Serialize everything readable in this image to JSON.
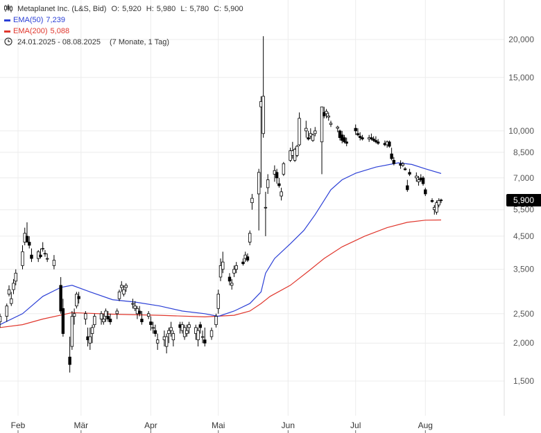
{
  "header": {
    "title": "Metaplanet Inc. (L&S, Bid)",
    "open_label": "O:",
    "open": "5,920",
    "high_label": "H:",
    "high": "5,980",
    "low_label": "L:",
    "low": "5,780",
    "close_label": "C:",
    "close": "5,900",
    "ema50_label": "EMA(50)",
    "ema50_value": "7,239",
    "ema200_label": "EMA(200)",
    "ema200_value": "5,088",
    "period": "24.01.2025 - 08.08.2025",
    "period_detail": "(7 Monate, 1 Tag)"
  },
  "price_tag": "5,900",
  "colors": {
    "ema50": "#2b3fd6",
    "ema200": "#e0362c",
    "candle": "#000000",
    "grid": "#ececec"
  },
  "icons": {
    "chart_type": "candles-icon",
    "period": "clock-icon"
  },
  "chart_data": {
    "type": "candlestick",
    "y_scale": "log",
    "ylim": [
      1200,
      23000
    ],
    "grid": true,
    "y_ticks": [
      1500,
      2000,
      2500,
      3500,
      4500,
      5500,
      7000,
      8500,
      10000,
      15000,
      20000
    ],
    "y_tick_labels": [
      "1,500",
      "2,000",
      "2,500",
      "3,500",
      "4,500",
      "5,500",
      "7,000",
      "8,500",
      "10,000",
      "15,000",
      "20,000"
    ],
    "x_range": [
      "2025-01-24",
      "2025-08-08"
    ],
    "x_ticks": [
      "2025-02-01",
      "2025-03-01",
      "2025-04-01",
      "2025-05-01",
      "2025-06-01",
      "2025-07-01",
      "2025-08-01"
    ],
    "x_tick_labels": [
      "Feb",
      "Mär",
      "Apr",
      "Mai",
      "Jun",
      "Jul",
      "Aug"
    ],
    "series": [
      {
        "name": "EMA(50)",
        "color": "#2b3fd6",
        "points": [
          [
            "2025-01-24",
            2300
          ],
          [
            "2025-02-03",
            2500
          ],
          [
            "2025-02-12",
            2850
          ],
          [
            "2025-02-20",
            3050
          ],
          [
            "2025-02-25",
            3100
          ],
          [
            "2025-03-05",
            2950
          ],
          [
            "2025-03-15",
            2780
          ],
          [
            "2025-03-25",
            2730
          ],
          [
            "2025-04-05",
            2650
          ],
          [
            "2025-04-15",
            2550
          ],
          [
            "2025-04-25",
            2500
          ],
          [
            "2025-05-01",
            2450
          ],
          [
            "2025-05-08",
            2550
          ],
          [
            "2025-05-15",
            2700
          ],
          [
            "2025-05-20",
            2950
          ],
          [
            "2025-05-22",
            3400
          ],
          [
            "2025-05-26",
            3800
          ],
          [
            "2025-06-02",
            4250
          ],
          [
            "2025-06-08",
            4700
          ],
          [
            "2025-06-13",
            5300
          ],
          [
            "2025-06-17",
            5900
          ],
          [
            "2025-06-20",
            6400
          ],
          [
            "2025-06-25",
            6900
          ],
          [
            "2025-07-01",
            7250
          ],
          [
            "2025-07-10",
            7600
          ],
          [
            "2025-07-20",
            7850
          ],
          [
            "2025-07-26",
            7750
          ],
          [
            "2025-08-01",
            7500
          ],
          [
            "2025-08-08",
            7239
          ]
        ]
      },
      {
        "name": "EMA(200)",
        "color": "#e0362c",
        "points": [
          [
            "2025-01-24",
            2250
          ],
          [
            "2025-02-03",
            2300
          ],
          [
            "2025-02-12",
            2400
          ],
          [
            "2025-02-25",
            2520
          ],
          [
            "2025-03-15",
            2490
          ],
          [
            "2025-04-05",
            2470
          ],
          [
            "2025-04-25",
            2440
          ],
          [
            "2025-05-08",
            2470
          ],
          [
            "2025-05-15",
            2550
          ],
          [
            "2025-05-20",
            2700
          ],
          [
            "2025-05-24",
            2850
          ],
          [
            "2025-06-02",
            3100
          ],
          [
            "2025-06-10",
            3450
          ],
          [
            "2025-06-17",
            3800
          ],
          [
            "2025-06-25",
            4150
          ],
          [
            "2025-07-05",
            4500
          ],
          [
            "2025-07-15",
            4800
          ],
          [
            "2025-07-24",
            5000
          ],
          [
            "2025-08-01",
            5080
          ],
          [
            "2025-08-08",
            5088
          ]
        ]
      }
    ],
    "candles": [
      [
        "2025-01-24",
        2350,
        2500,
        2250,
        2450
      ],
      [
        "2025-01-27",
        2450,
        2700,
        2350,
        2650
      ],
      [
        "2025-01-28",
        2900,
        3100,
        2850,
        3000
      ],
      [
        "2025-01-29",
        2700,
        2950,
        2650,
        2800
      ],
      [
        "2025-01-30",
        3000,
        3250,
        2900,
        3150
      ],
      [
        "2025-01-31",
        3200,
        3500,
        3100,
        3400
      ],
      [
        "2025-02-03",
        3600,
        4200,
        3500,
        4000
      ],
      [
        "2025-02-04",
        4300,
        4800,
        4200,
        4600
      ],
      [
        "2025-02-05",
        4500,
        5000,
        4300,
        4300
      ],
      [
        "2025-02-06",
        4300,
        4500,
        4100,
        4200
      ],
      [
        "2025-02-07",
        3900,
        4100,
        3700,
        3800
      ],
      [
        "2025-02-10",
        3800,
        4050,
        3700,
        4000
      ],
      [
        "2025-02-11",
        3900,
        4100,
        3800,
        3850
      ],
      [
        "2025-02-12",
        4100,
        4300,
        4000,
        4100
      ],
      [
        "2025-02-13",
        3950,
        4050,
        3850,
        3950
      ],
      [
        "2025-02-14",
        3800,
        3950,
        3700,
        3800
      ],
      [
        "2025-02-17",
        3600,
        3900,
        3500,
        3750
      ],
      [
        "2025-02-20",
        3100,
        3300,
        2500,
        2550
      ],
      [
        "2025-02-21",
        2600,
        2800,
        2100,
        2150
      ],
      [
        "2025-02-24",
        1800,
        2100,
        1600,
        1700
      ],
      [
        "2025-02-25",
        1950,
        2550,
        1900,
        2450
      ],
      [
        "2025-02-26",
        2450,
        2600,
        2300,
        2500
      ],
      [
        "2025-02-27",
        2650,
        2950,
        2600,
        2900
      ],
      [
        "2025-02-28",
        2850,
        2950,
        2700,
        2800
      ],
      [
        "2025-03-03",
        2400,
        2550,
        2300,
        2500
      ],
      [
        "2025-03-04",
        2100,
        2250,
        1950,
        2050
      ],
      [
        "2025-03-05",
        2000,
        2250,
        1900,
        2100
      ],
      [
        "2025-03-06",
        2150,
        2300,
        2000,
        2250
      ],
      [
        "2025-03-07",
        2300,
        2500,
        2250,
        2450
      ],
      [
        "2025-03-10",
        2400,
        2550,
        2300,
        2500
      ],
      [
        "2025-03-11",
        2350,
        2500,
        2300,
        2400
      ],
      [
        "2025-03-12",
        2450,
        2600,
        2350,
        2550
      ],
      [
        "2025-03-13",
        2450,
        2550,
        2350,
        2400
      ],
      [
        "2025-03-14",
        2400,
        2500,
        2300,
        2350
      ],
      [
        "2025-03-17",
        2500,
        2600,
        2400,
        2550
      ],
      [
        "2025-03-18",
        2800,
        3000,
        2750,
        2950
      ],
      [
        "2025-03-19",
        3050,
        3200,
        2950,
        3100
      ],
      [
        "2025-03-20",
        2900,
        3100,
        2850,
        3000
      ],
      [
        "2025-03-21",
        3050,
        3150,
        2950,
        3100
      ],
      [
        "2025-03-24",
        2700,
        2800,
        2600,
        2700
      ],
      [
        "2025-03-25",
        2600,
        2750,
        2550,
        2650
      ],
      [
        "2025-03-26",
        2500,
        2650,
        2400,
        2600
      ],
      [
        "2025-03-27",
        2550,
        2650,
        2450,
        2500
      ],
      [
        "2025-03-28",
        2400,
        2550,
        2300,
        2350
      ],
      [
        "2025-03-31",
        2450,
        2550,
        2400,
        2500
      ],
      [
        "2025-04-01",
        2350,
        2450,
        2200,
        2300
      ],
      [
        "2025-04-02",
        2250,
        2350,
        2150,
        2250
      ],
      [
        "2025-04-03",
        2200,
        2300,
        2100,
        2150
      ],
      [
        "2025-04-04",
        2000,
        2150,
        1900,
        2050
      ],
      [
        "2025-04-07",
        2050,
        2200,
        1950,
        2100
      ],
      [
        "2025-04-08",
        1950,
        2150,
        1850,
        2100
      ],
      [
        "2025-04-09",
        2150,
        2250,
        2000,
        2200
      ],
      [
        "2025-04-10",
        2200,
        2350,
        2100,
        2250
      ],
      [
        "2025-04-11",
        2050,
        2200,
        1950,
        2150
      ],
      [
        "2025-04-14",
        2300,
        2350,
        2150,
        2250
      ],
      [
        "2025-04-15",
        2200,
        2350,
        2150,
        2300
      ],
      [
        "2025-04-16",
        2100,
        2300,
        2050,
        2250
      ],
      [
        "2025-04-17",
        2150,
        2300,
        2100,
        2200
      ],
      [
        "2025-04-18",
        2250,
        2350,
        2150,
        2300
      ],
      [
        "2025-04-21",
        2150,
        2300,
        2050,
        2250
      ],
      [
        "2025-04-22",
        2050,
        2250,
        1950,
        2200
      ],
      [
        "2025-04-23",
        2300,
        2350,
        2150,
        2250
      ],
      [
        "2025-04-24",
        2100,
        2200,
        2000,
        2100
      ],
      [
        "2025-04-25",
        2050,
        2250,
        1950,
        2000
      ],
      [
        "2025-04-28",
        2100,
        2250,
        2050,
        2200
      ],
      [
        "2025-04-30",
        2300,
        2500,
        2250,
        2450
      ],
      [
        "2025-05-01",
        2600,
        3000,
        2500,
        2900
      ],
      [
        "2025-05-02",
        3300,
        3800,
        3200,
        3600
      ],
      [
        "2025-05-03",
        3500,
        4000,
        3400,
        3700
      ],
      [
        "2025-05-06",
        3300,
        3400,
        3100,
        3200
      ],
      [
        "2025-05-07",
        3100,
        3250,
        3000,
        3150
      ],
      [
        "2025-05-08",
        3400,
        3600,
        3300,
        3500
      ],
      [
        "2025-05-09",
        3500,
        3700,
        3400,
        3600
      ],
      [
        "2025-05-12",
        3700,
        3800,
        3600,
        3650
      ],
      [
        "2025-05-13",
        3800,
        4000,
        3700,
        3900
      ],
      [
        "2025-05-14",
        3850,
        3950,
        3700,
        3750
      ],
      [
        "2025-05-15",
        4300,
        4700,
        4200,
        4600
      ],
      [
        "2025-05-16",
        5800,
        6200,
        5500,
        6000
      ],
      [
        "2025-05-19",
        6200,
        7500,
        4700,
        7300
      ],
      [
        "2025-05-20",
        12000,
        13000,
        6500,
        12500
      ],
      [
        "2025-05-21",
        9800,
        20500,
        9500,
        13000
      ],
      [
        "2025-05-22",
        5600,
        6300,
        4500,
        5600
      ],
      [
        "2025-05-23",
        6500,
        7200,
        6200,
        6900
      ],
      [
        "2025-05-26",
        7200,
        7700,
        6800,
        7400
      ],
      [
        "2025-05-27",
        7300,
        7500,
        6700,
        7000
      ],
      [
        "2025-05-28",
        6700,
        7000,
        6500,
        6600
      ],
      [
        "2025-05-29",
        6100,
        6500,
        5900,
        6300
      ],
      [
        "2025-05-30",
        7200,
        7900,
        7100,
        7800
      ],
      [
        "2025-06-02",
        8000,
        8800,
        7900,
        8600
      ],
      [
        "2025-06-03",
        8300,
        9200,
        8100,
        8600
      ],
      [
        "2025-06-04",
        8000,
        8800,
        7900,
        8700
      ],
      [
        "2025-06-05",
        8300,
        9000,
        8200,
        8900
      ],
      [
        "2025-06-06",
        9000,
        11500,
        8900,
        11000
      ],
      [
        "2025-06-09",
        10000,
        10800,
        9500,
        10200
      ],
      [
        "2025-06-10",
        9500,
        10000,
        9300,
        9400
      ],
      [
        "2025-06-11",
        9600,
        10200,
        9400,
        9800
      ],
      [
        "2025-06-12",
        9300,
        9800,
        9200,
        9700
      ],
      [
        "2025-06-13",
        9800,
        10300,
        9600,
        10000
      ],
      [
        "2025-06-16",
        9200,
        12000,
        7200,
        12000
      ],
      [
        "2025-06-17",
        11500,
        12000,
        11000,
        11200
      ],
      [
        "2025-06-18",
        11400,
        11800,
        11000,
        11600
      ],
      [
        "2025-06-19",
        11100,
        11500,
        10800,
        11200
      ],
      [
        "2025-06-20",
        10500,
        10800,
        10300,
        10600
      ],
      [
        "2025-06-23",
        10200,
        10400,
        9900,
        10300
      ],
      [
        "2025-06-24",
        10000,
        10100,
        9300,
        9500
      ],
      [
        "2025-06-25",
        9700,
        10000,
        9100,
        9300
      ],
      [
        "2025-06-26",
        9500,
        9700,
        9100,
        9200
      ],
      [
        "2025-06-27",
        9200,
        9500,
        8900,
        9100
      ],
      [
        "2025-07-01",
        10200,
        10500,
        9700,
        10000
      ],
      [
        "2025-07-02",
        9800,
        10200,
        9600,
        9700
      ],
      [
        "2025-07-03",
        9600,
        9900,
        9300,
        9500
      ],
      [
        "2025-07-04",
        9500,
        9700,
        9300,
        9400
      ],
      [
        "2025-07-07",
        9400,
        9700,
        9200,
        9500
      ],
      [
        "2025-07-08",
        9500,
        9800,
        9300,
        9400
      ],
      [
        "2025-07-09",
        9400,
        9600,
        9200,
        9300
      ],
      [
        "2025-07-10",
        9300,
        9600,
        9100,
        9200
      ],
      [
        "2025-07-11",
        9200,
        9400,
        9000,
        9100
      ],
      [
        "2025-07-14",
        9100,
        9300,
        8900,
        9000
      ],
      [
        "2025-07-15",
        9000,
        9300,
        8800,
        9200
      ],
      [
        "2025-07-16",
        9200,
        9300,
        8800,
        8900
      ],
      [
        "2025-07-17",
        8400,
        8800,
        8000,
        8100
      ],
      [
        "2025-07-18",
        8000,
        8200,
        7700,
        7800
      ],
      [
        "2025-07-21",
        7800,
        8000,
        7500,
        7700
      ],
      [
        "2025-07-22",
        7700,
        7900,
        7600,
        7800
      ],
      [
        "2025-07-23",
        7500,
        7600,
        7400,
        7450
      ],
      [
        "2025-07-24",
        6600,
        6900,
        6300,
        6400
      ],
      [
        "2025-07-25",
        7300,
        7500,
        7100,
        7200
      ],
      [
        "2025-07-28",
        7000,
        7300,
        6800,
        7100
      ],
      [
        "2025-07-29",
        6800,
        7100,
        6600,
        6900
      ],
      [
        "2025-07-30",
        7000,
        7200,
        6800,
        6900
      ],
      [
        "2025-07-31",
        7000,
        7100,
        6600,
        6700
      ],
      [
        "2025-08-01",
        6400,
        6500,
        6100,
        6200
      ],
      [
        "2025-08-04",
        5900,
        6000,
        5800,
        5850
      ],
      [
        "2025-08-05",
        5500,
        5700,
        5300,
        5600
      ],
      [
        "2025-08-06",
        5400,
        5900,
        5300,
        5800
      ],
      [
        "2025-08-07",
        5700,
        6000,
        5600,
        5900
      ],
      [
        "2025-08-08",
        5920,
        5980,
        5780,
        5900
      ]
    ]
  }
}
